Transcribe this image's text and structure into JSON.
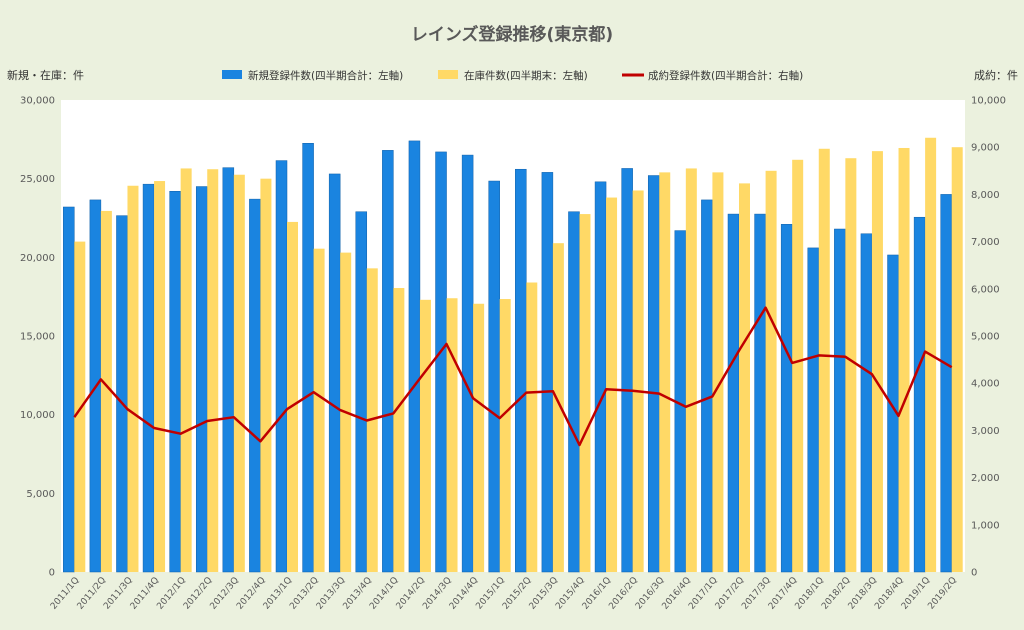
{
  "chart_data": {
    "type": "bar",
    "title": "レインズ登録推移(東京都)",
    "ylabel_left": "新規・在庫：件",
    "ylabel_right": "成約：件",
    "ylim_left": [
      0,
      30000
    ],
    "ylim_right": [
      0,
      10000
    ],
    "yticks_left": [
      "0",
      "5,000",
      "10,000",
      "15,000",
      "20,000",
      "25,000",
      "30,000"
    ],
    "yticks_right": [
      "0",
      "1,000",
      "2,000",
      "3,000",
      "4,000",
      "5,000",
      "6,000",
      "7,000",
      "8,000",
      "9,000",
      "10,000"
    ],
    "legend_position": "top",
    "grid": false,
    "categories": [
      "2011/1Q",
      "2011/2Q",
      "2011/3Q",
      "2011/4Q",
      "2012/1Q",
      "2012/2Q",
      "2012/3Q",
      "2012/4Q",
      "2013/1Q",
      "2013/2Q",
      "2013/3Q",
      "2013/4Q",
      "2014/1Q",
      "2014/2Q",
      "2014/3Q",
      "2014/4Q",
      "2015/1Q",
      "2015/2Q",
      "2015/3Q",
      "2015/4Q",
      "2016/1Q",
      "2016/2Q",
      "2016/3Q",
      "2016/4Q",
      "2017/1Q",
      "2017/2Q",
      "2017/3Q",
      "2017/4Q",
      "2018/1Q",
      "2018/2Q",
      "2018/3Q",
      "2018/4Q",
      "2019/1Q",
      "2019/2Q"
    ],
    "series": [
      {
        "name": "新規登録件数(四半期合計：左軸)",
        "type": "bar",
        "axis": "left",
        "color": "#1a84e0",
        "values": [
          23200,
          23650,
          22650,
          24650,
          24200,
          24500,
          25700,
          23700,
          26150,
          27250,
          25300,
          22900,
          26800,
          27400,
          26700,
          26500,
          24850,
          25600,
          25400,
          22900,
          24800,
          25650,
          25200,
          21700,
          23650,
          22750,
          22750,
          22100,
          20600,
          21800,
          21500,
          20150,
          22550,
          24000
        ]
      },
      {
        "name": "在庫件数(四半期末：左軸)",
        "type": "bar",
        "axis": "left",
        "color": "#ffd966",
        "values": [
          21000,
          22950,
          24550,
          24850,
          25650,
          25600,
          25250,
          25000,
          22250,
          20550,
          20300,
          19300,
          18050,
          17300,
          17400,
          17050,
          17350,
          18400,
          20900,
          22750,
          23800,
          24250,
          25400,
          25650,
          25400,
          24700,
          25500,
          26200,
          26900,
          26300,
          26750,
          26950,
          27600,
          27000
        ]
      },
      {
        "name": "成約登録件数(四半期合計：右軸)",
        "type": "line",
        "axis": "right",
        "color": "#c00000",
        "values": [
          3280,
          4080,
          3450,
          3050,
          2930,
          3200,
          3280,
          2770,
          3450,
          3810,
          3430,
          3210,
          3360,
          4100,
          4830,
          3680,
          3260,
          3800,
          3830,
          2690,
          3870,
          3840,
          3780,
          3500,
          3720,
          4690,
          5600,
          4430,
          4590,
          4560,
          4190,
          3310,
          4670,
          4340
        ]
      }
    ]
  }
}
